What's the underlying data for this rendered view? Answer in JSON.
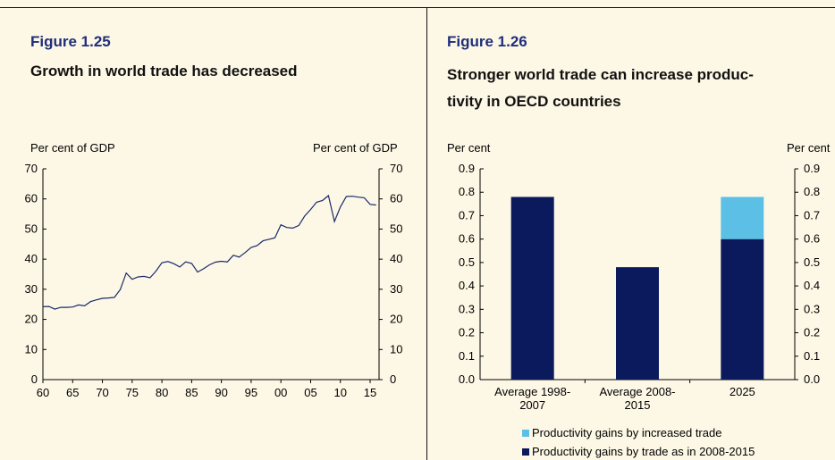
{
  "left": {
    "fignum": "Figure 1.25",
    "title": "Growth in world trade has decreased",
    "unit_left": "Per cent of GDP",
    "unit_right": "Per cent of GDP"
  },
  "right": {
    "fignum": "Figure 1.26",
    "title_line1": "Stronger world trade can increase produc-",
    "title_line2": "tivity in OECD countries",
    "unit_left": "Per cent",
    "unit_right": "Per cent"
  },
  "colors": {
    "navy": "#0b1a5c",
    "light_blue": "#5cc0e6",
    "line": "#1a2a6c",
    "title_blue": "#1f2e7a"
  },
  "chart_data": [
    {
      "type": "line",
      "ylim": [
        0,
        70
      ],
      "yticks": [
        0,
        10,
        20,
        30,
        40,
        50,
        60,
        70
      ],
      "xticks": [
        "60",
        "65",
        "70",
        "75",
        "80",
        "85",
        "90",
        "95",
        "00",
        "05",
        "10",
        "15"
      ],
      "x": [
        1960,
        1961,
        1962,
        1963,
        1964,
        1965,
        1966,
        1967,
        1968,
        1969,
        1970,
        1971,
        1972,
        1973,
        1974,
        1975,
        1976,
        1977,
        1978,
        1979,
        1980,
        1981,
        1982,
        1983,
        1984,
        1985,
        1986,
        1987,
        1988,
        1989,
        1990,
        1991,
        1992,
        1993,
        1994,
        1995,
        1996,
        1997,
        1998,
        1999,
        2000,
        2001,
        2002,
        2003,
        2004,
        2005,
        2006,
        2007,
        2008,
        2009,
        2010,
        2011,
        2012,
        2013,
        2014,
        2015,
        2016
      ],
      "series": [
        {
          "values": [
            24.2,
            24.3,
            23.4,
            24.0,
            24.0,
            24.1,
            24.8,
            24.5,
            25.9,
            26.5,
            27.0,
            27.1,
            27.3,
            29.9,
            35.4,
            33.3,
            34.1,
            34.3,
            33.8,
            36.0,
            38.8,
            39.2,
            38.5,
            37.4,
            39.1,
            38.6,
            35.7,
            36.8,
            38.1,
            39.0,
            39.3,
            39.1,
            41.3,
            40.7,
            42.2,
            43.9,
            44.5,
            46.1,
            46.6,
            47.1,
            51.4,
            50.5,
            50.3,
            51.2,
            54.3,
            56.5,
            58.9,
            59.5,
            61.1,
            52.5,
            57.3,
            60.8,
            60.9,
            60.6,
            60.4,
            58.2,
            58.0
          ]
        }
      ]
    },
    {
      "type": "bar",
      "stacked": true,
      "ylim": [
        0,
        0.9
      ],
      "yticks": [
        "0.0",
        "0.1",
        "0.2",
        "0.3",
        "0.4",
        "0.5",
        "0.6",
        "0.7",
        "0.8",
        "0.9"
      ],
      "categories": [
        [
          "Average 1998-",
          "2007"
        ],
        [
          "Average 2008-",
          "2015"
        ],
        [
          "2025"
        ]
      ],
      "series": [
        {
          "name": "Productivity gains by trade as in 2008-2015",
          "values": [
            0.78,
            0.48,
            0.6
          ],
          "color": "#0b1a5c"
        },
        {
          "name": "Productivity gains by increased trade",
          "values": [
            0,
            0,
            0.18
          ],
          "color": "#5cc0e6"
        }
      ],
      "legend": [
        "Productivity gains by increased trade",
        "Productivity gains by trade as in 2008-2015"
      ],
      "legend_position": "bottom"
    }
  ]
}
